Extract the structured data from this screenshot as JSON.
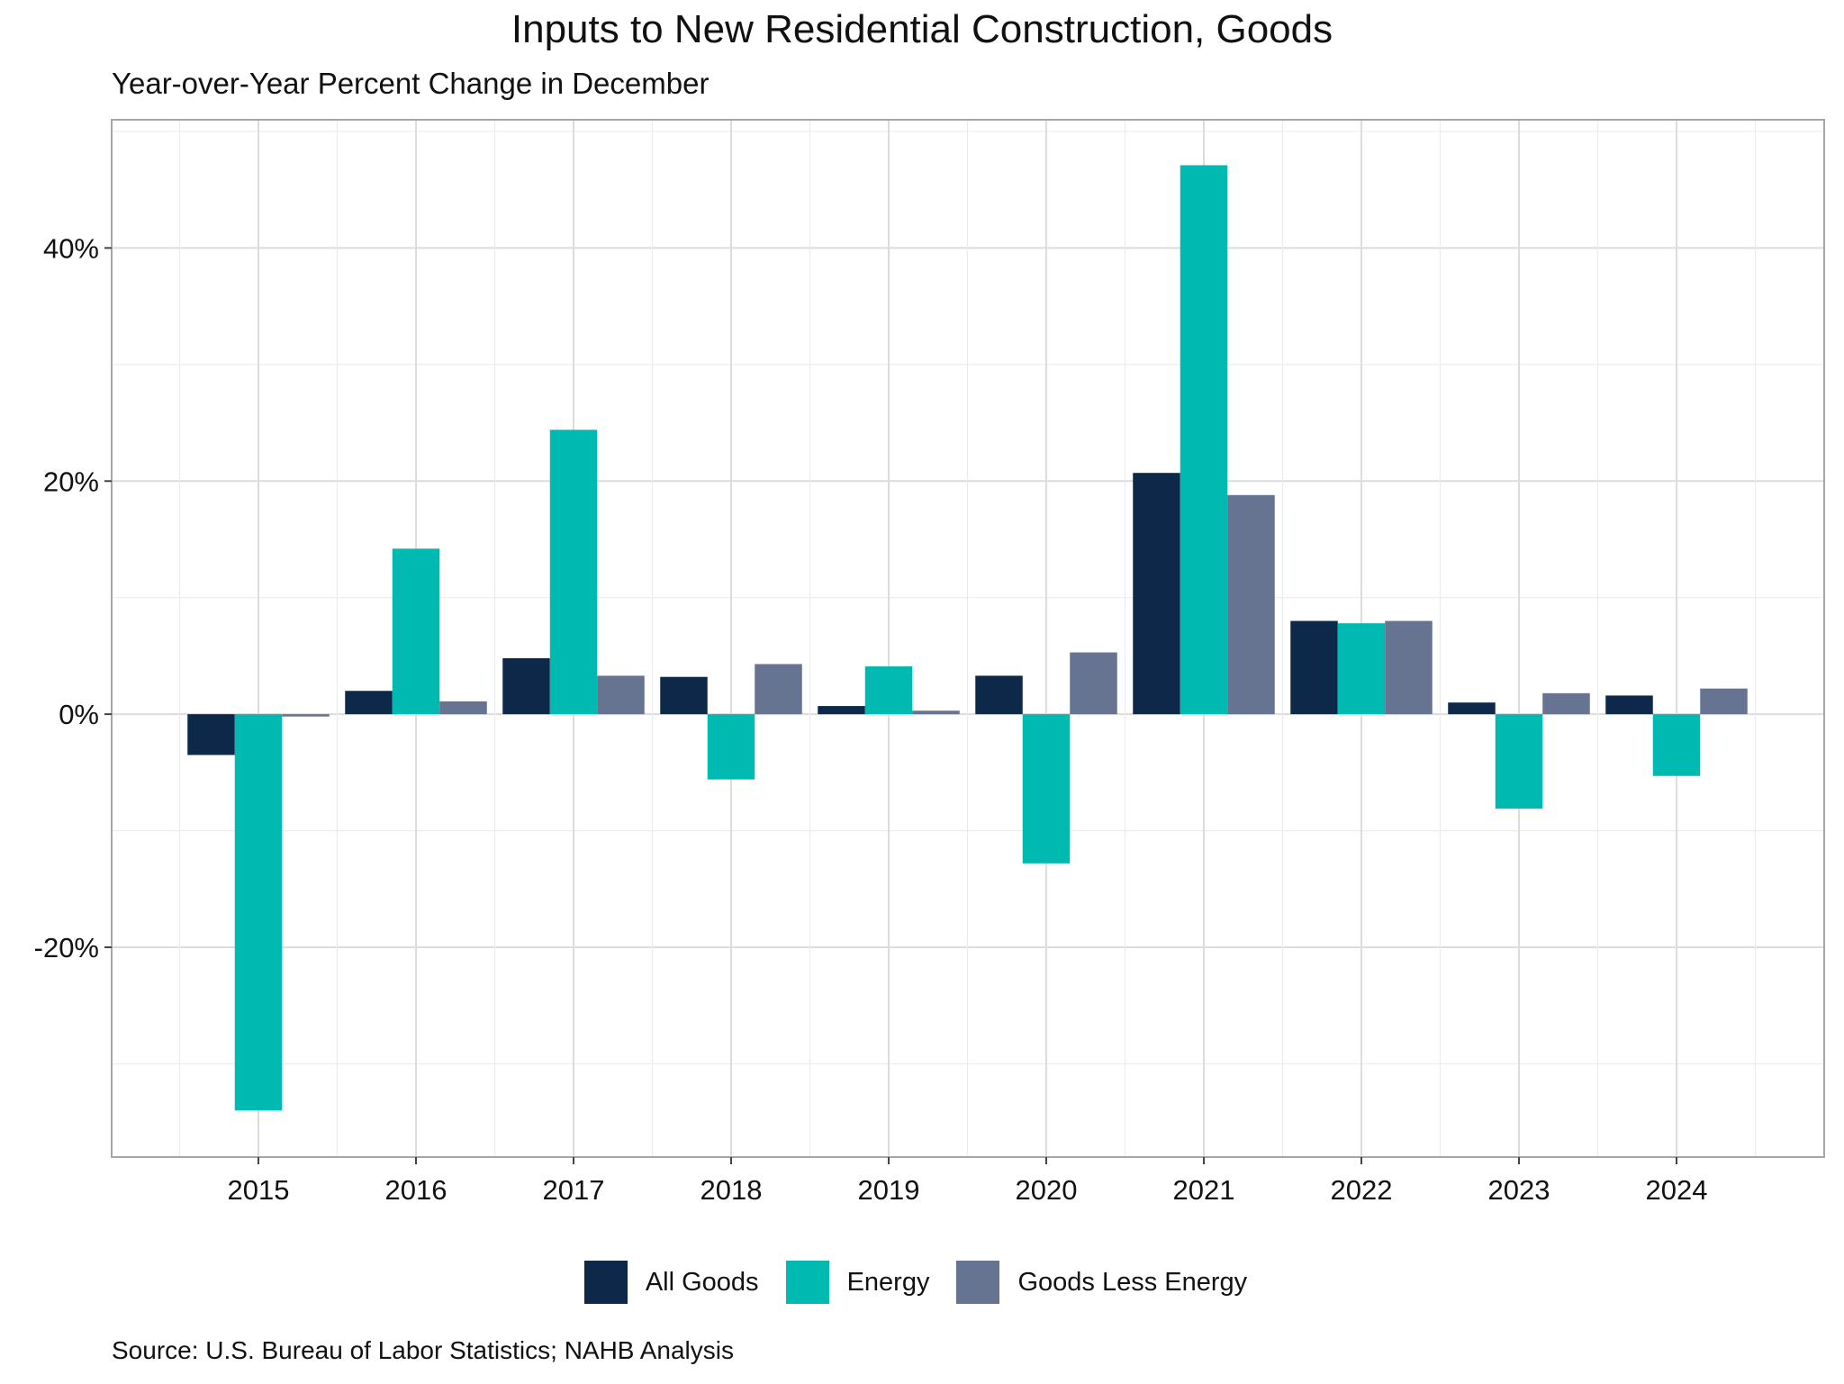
{
  "chart_data": {
    "type": "bar",
    "title": "Inputs to New Residential Construction, Goods",
    "subtitle": "Year-over-Year Percent Change in December",
    "source": "Source: U.S. Bureau of Labor Statistics; NAHB Analysis",
    "categories": [
      "2015",
      "2016",
      "2017",
      "2018",
      "2019",
      "2020",
      "2021",
      "2022",
      "2023",
      "2024"
    ],
    "series": [
      {
        "name": "All Goods",
        "color": "#0e2849",
        "values": [
          -3.5,
          2.0,
          4.8,
          3.2,
          0.7,
          3.3,
          20.7,
          8.0,
          1.0,
          1.6
        ]
      },
      {
        "name": "Energy",
        "color": "#00bab1",
        "values": [
          -34.0,
          14.2,
          24.4,
          -5.6,
          4.1,
          -12.8,
          47.1,
          7.8,
          -8.1,
          -5.3
        ]
      },
      {
        "name": "Goods Less Energy",
        "color": "#677491",
        "values": [
          -0.2,
          1.1,
          3.3,
          4.3,
          0.3,
          5.3,
          18.8,
          8.0,
          1.8,
          2.2
        ]
      }
    ],
    "yticks": [
      -20,
      0,
      20,
      40
    ],
    "ytick_labels": [
      "-20%",
      "0%",
      "20%",
      "40%"
    ],
    "ylim": [
      -38,
      51
    ],
    "grid": true,
    "legend_position": "bottom"
  }
}
